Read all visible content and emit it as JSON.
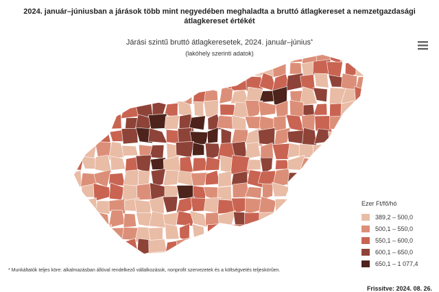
{
  "title": "2024. január–júniusban a járások több mint negyedében meghaladta a bruttó átlagkereset a nemzetgazdasági átlagkereset értékét",
  "map": {
    "title": "Járási szintű bruttó átlagkeresetek, 2024. január–június",
    "title_marker": "*",
    "subtitle": "(lakóhely szerinti adatok)",
    "legend": {
      "title": "Ezer Ft/fő/hó",
      "items": [
        {
          "label": "389,2 – 500,0",
          "color": "#e9bca6"
        },
        {
          "label": "500,1 – 550,0",
          "color": "#dc8f78"
        },
        {
          "label": "550,1 – 600,0",
          "color": "#c96452"
        },
        {
          "label": "600,1 – 650,0",
          "color": "#8e4338"
        },
        {
          "label": "650,1 – 1 077,4",
          "color": "#4d231c"
        }
      ]
    }
  },
  "footnote": "* Munkáltatók teljes köre: alkalmazásban állóval rendelkező vállalkozások, nonprofit szervezetek és a költségvetés teljeskörűen.",
  "updated": "Frissítve: 2024. 08. 26."
}
